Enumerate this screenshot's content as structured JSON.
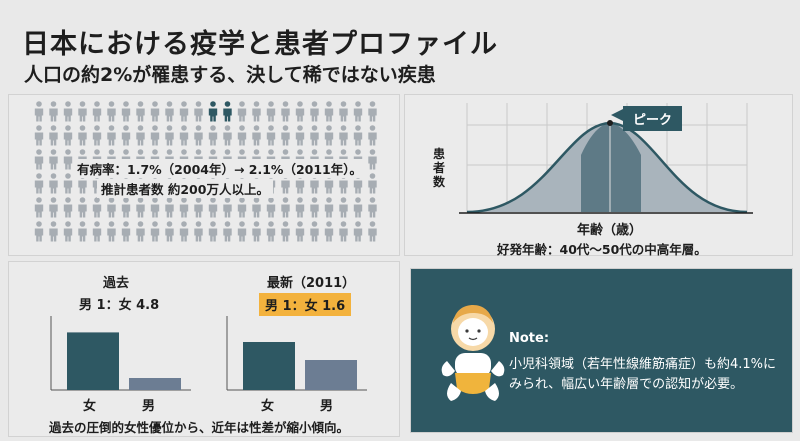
{
  "header": {
    "title": "日本における疫学と患者プロファイル",
    "subtitle": "人口の約2%が罹患する、決して稀ではない疾患"
  },
  "prevalence": {
    "line1": "有病率：1.7%（2004年）→ 2.1%（2011年）。",
    "line2": "推計患者数 約200万人以上。",
    "icon": "person-icon",
    "person_color": "#a7adb3",
    "highlight_color": "#2e5863"
  },
  "age_chart": {
    "ylabel": "患者数",
    "xlabel": "年齢（歳）",
    "peak_label": "ピーク",
    "caption": "好発年齢：40代〜50代の中高年層。",
    "curve_color": "#2e5863",
    "fill_color": "#a9b4bc",
    "peak_fill_color": "#5e7a86"
  },
  "gender": {
    "past": {
      "header": "過去",
      "ratio": "男 1：女 4.8"
    },
    "latest": {
      "header": "最新（2011）",
      "ratio": "男 1：女 1.6"
    },
    "chart_data": [
      {
        "type": "bar",
        "title": "過去",
        "categories": [
          "女",
          "男"
        ],
        "values": [
          4.8,
          1
        ],
        "ylim": [
          0,
          6
        ]
      },
      {
        "type": "bar",
        "title": "最新（2011）",
        "categories": [
          "女",
          "男"
        ],
        "values": [
          1.6,
          1
        ],
        "ylim": [
          0,
          2.4
        ]
      }
    ],
    "caption": "過去の圧倒的女性優位から、近年は性差が縮小傾向。",
    "female_color": "#2e5863",
    "male_color": "#6c7d93",
    "badge_color": "#f3b23d"
  },
  "note": {
    "heading": "Note:",
    "line1": "小児科領域（若年性線維筋痛症）も約4.1%に",
    "line2": "みられ、幅広い年齢層での認知が必要。",
    "icon": "baby-icon"
  }
}
